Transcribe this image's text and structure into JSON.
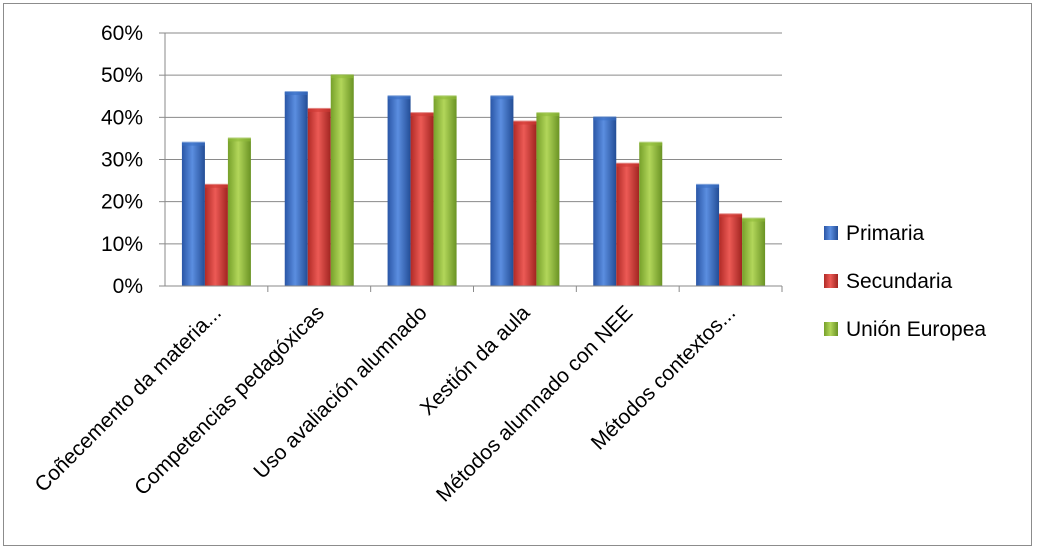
{
  "chart_data": {
    "type": "bar",
    "categories": [
      "Coñecemento da materia...",
      "Competencias pedagóxicas",
      "Uso avaliación alumnado",
      "Xestión da aula",
      "Métodos alumnado con NEE",
      "Métodos contextos..."
    ],
    "series": [
      {
        "name": "Primaria",
        "values": [
          34,
          46,
          45,
          45,
          40,
          24
        ],
        "color": "#3a6fc4"
      },
      {
        "name": "Secundaria",
        "values": [
          24,
          42,
          41,
          39,
          29,
          17
        ],
        "color": "#d03a36"
      },
      {
        "name": "Unión Europea",
        "values": [
          35,
          50,
          45,
          41,
          34,
          16
        ],
        "color": "#8fba3a"
      }
    ],
    "y_ticks": [
      "0%",
      "10%",
      "20%",
      "30%",
      "40%",
      "50%",
      "60%"
    ],
    "ylim": [
      0,
      60
    ],
    "y_unit": "%",
    "grid": true,
    "legend_position": "right"
  }
}
